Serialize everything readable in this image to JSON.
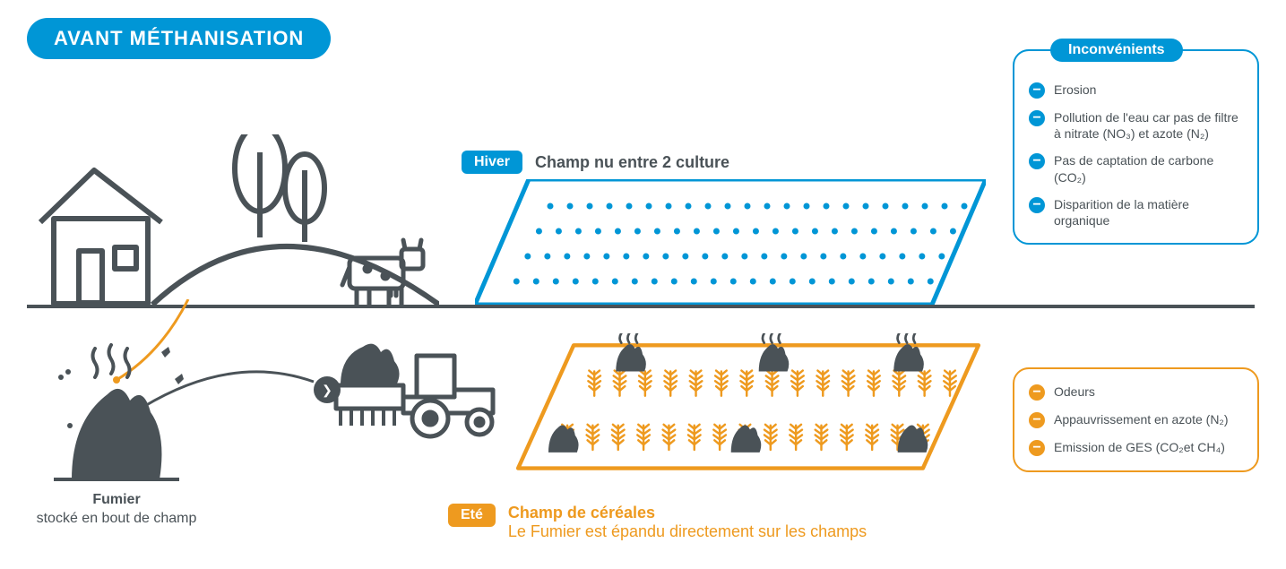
{
  "colors": {
    "blue": "#0096d6",
    "orange": "#ee9a1f",
    "dark": "#4a5257",
    "text": "#4a5257",
    "white": "#ffffff"
  },
  "title": "AVANT MÉTHANISATION",
  "winter": {
    "season_label": "Hiver",
    "title": "Champ nu entre 2 culture",
    "field_border_color": "#0096d6",
    "dot_rows": 4,
    "dot_cols": 22,
    "dot_color": "#0096d6"
  },
  "inconvenients": {
    "title": "Inconvénients",
    "items": [
      "Erosion",
      "Pollution de l'eau car pas de filtre à nitrate (NO₃) et azote (N₂)",
      "Pas de captation de carbone (CO₂)",
      "Disparition de la matière organique"
    ]
  },
  "manure": {
    "title": "Fumier",
    "caption": "stocké en bout de champ"
  },
  "summer": {
    "season_label": "Eté",
    "title": "Champ de céréales",
    "subtitle": "Le Fumier est épandu directement sur les champs",
    "field_border_color": "#ee9a1f",
    "wheat_rows": 2,
    "wheat_cols": 15,
    "wheat_color": "#ee9a1f",
    "manure_piles": 6
  },
  "orange_items": [
    "Odeurs",
    "Appauvrissement  en azote (N₂)",
    "Emission de GES (CO₂et CH₄)"
  ]
}
